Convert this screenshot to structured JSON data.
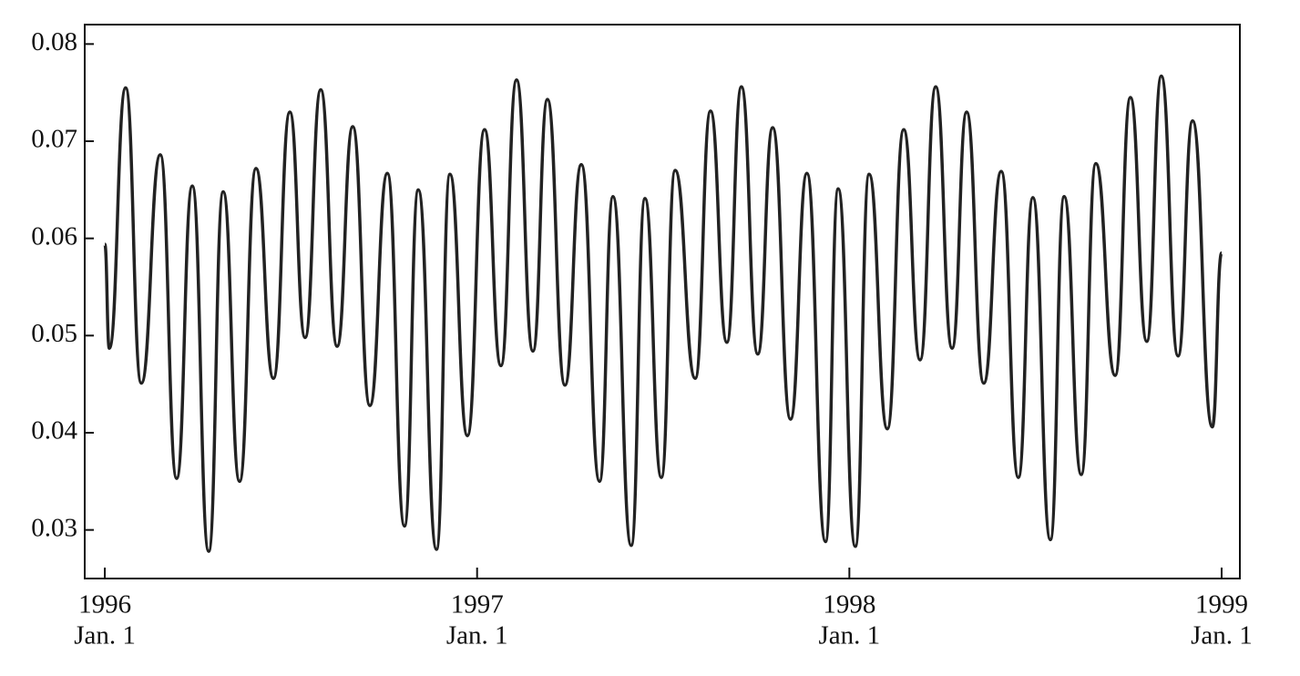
{
  "chart_data": {
    "type": "line",
    "x": [
      1996.0,
      1996.012,
      1996.056,
      1996.098,
      1996.149,
      1996.193,
      1996.235,
      1996.279,
      1996.318,
      1996.362,
      1996.406,
      1996.453,
      1996.497,
      1996.538,
      1996.58,
      1996.624,
      1996.666,
      1996.712,
      1996.759,
      1996.805,
      1996.842,
      1996.891,
      1996.927,
      1996.974,
      1997.02,
      1997.064,
      1997.106,
      1997.15,
      1997.189,
      1997.236,
      1997.28,
      1997.329,
      1997.365,
      1997.414,
      1997.451,
      1997.495,
      1997.532,
      1997.586,
      1997.627,
      1997.671,
      1997.71,
      1997.754,
      1997.794,
      1997.842,
      1997.886,
      1997.936,
      1997.97,
      1998.016,
      1998.053,
      1998.102,
      1998.146,
      1998.19,
      1998.232,
      1998.276,
      1998.315,
      1998.361,
      1998.408,
      1998.454,
      1998.493,
      1998.54,
      1998.577,
      1998.623,
      1998.662,
      1998.714,
      1998.755,
      1998.799,
      1998.838,
      1998.883,
      1998.922,
      1998.975,
      1999.0
    ],
    "series": [
      {
        "color": "#222222",
        "values": [
          0.0594,
          0.0487,
          0.0755,
          0.0451,
          0.0686,
          0.0353,
          0.0654,
          0.0278,
          0.0648,
          0.035,
          0.0672,
          0.0456,
          0.073,
          0.0498,
          0.0753,
          0.0489,
          0.0715,
          0.0428,
          0.0667,
          0.0304,
          0.065,
          0.028,
          0.0666,
          0.0397,
          0.0712,
          0.0469,
          0.0763,
          0.0484,
          0.0743,
          0.0449,
          0.0676,
          0.035,
          0.0643,
          0.0284,
          0.0641,
          0.0354,
          0.067,
          0.0456,
          0.0731,
          0.0493,
          0.0756,
          0.0481,
          0.0714,
          0.0414,
          0.0667,
          0.0288,
          0.0651,
          0.0283,
          0.0666,
          0.0404,
          0.0712,
          0.0475,
          0.0756,
          0.0487,
          0.073,
          0.0451,
          0.0669,
          0.0354,
          0.0642,
          0.029,
          0.0643,
          0.0357,
          0.0677,
          0.0459,
          0.0745,
          0.0494,
          0.0767,
          0.0479,
          0.0721,
          0.0406,
          0.0585
        ]
      }
    ],
    "xlim": [
      1995.946,
      1999.049
    ],
    "xticks": [
      1996,
      1997,
      1998,
      1999
    ],
    "xtick_sublabels": [
      "Jan. 1",
      "Jan. 1",
      "Jan. 1",
      "Jan. 1"
    ],
    "ylim": [
      0.025,
      0.082
    ],
    "yticks": [
      0.03,
      0.04,
      0.05,
      0.06,
      0.07,
      0.08
    ]
  }
}
